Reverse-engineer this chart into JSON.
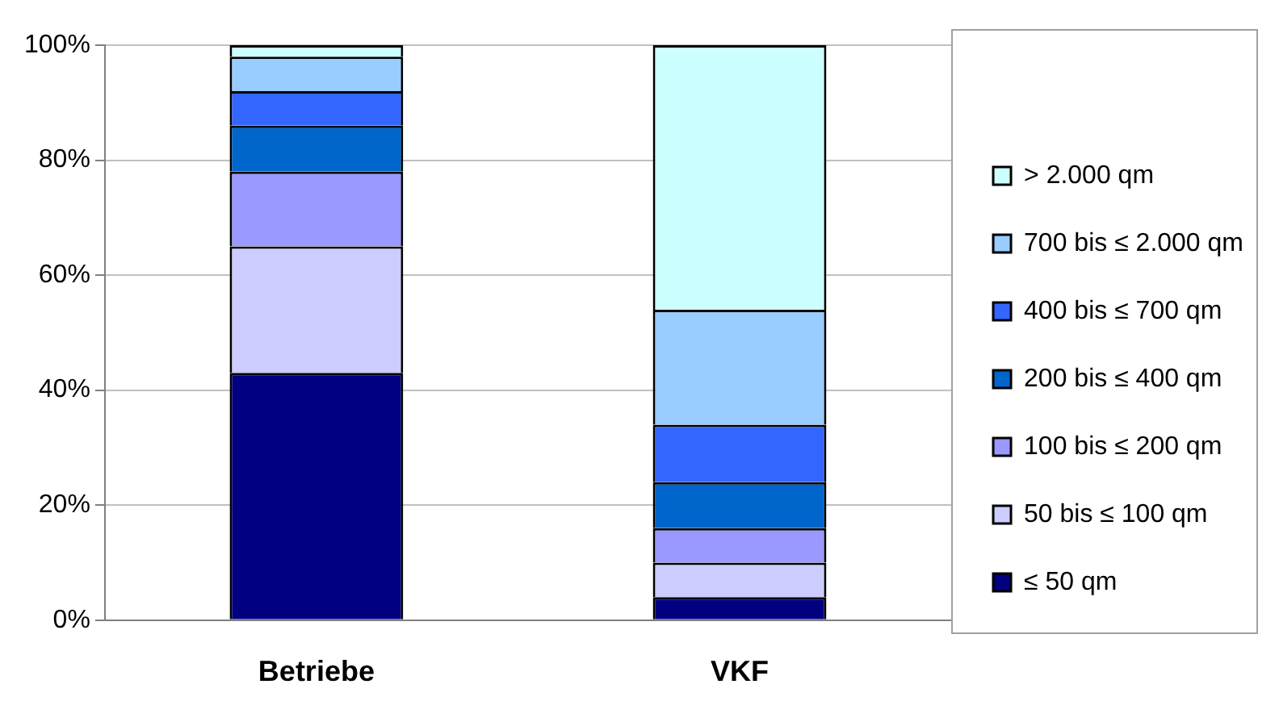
{
  "chart_data": {
    "type": "bar",
    "stacked": true,
    "categories": [
      "Betriebe",
      "VKF"
    ],
    "series": [
      {
        "name": "≤ 50 qm",
        "color": "#000080",
        "values": [
          43,
          4
        ]
      },
      {
        "name": "50 bis ≤ 100 qm",
        "color": "#ccccff",
        "values": [
          22,
          6
        ]
      },
      {
        "name": "100 bis ≤ 200 qm",
        "color": "#9999ff",
        "values": [
          13,
          6
        ]
      },
      {
        "name": "200 bis ≤ 400 qm",
        "color": "#0066cc",
        "values": [
          8,
          8
        ]
      },
      {
        "name": "400 bis ≤ 700 qm",
        "color": "#3366ff",
        "values": [
          6,
          10
        ]
      },
      {
        "name": "700 bis ≤ 2.000 qm",
        "color": "#99ccff",
        "values": [
          6,
          20
        ]
      },
      {
        "name": "> 2.000 qm",
        "color": "#ccffff",
        "values": [
          2,
          46
        ]
      }
    ],
    "ylim": [
      0,
      100
    ],
    "yticks": [
      {
        "value": 0,
        "label": "0%"
      },
      {
        "value": 20,
        "label": "20%"
      },
      {
        "value": 40,
        "label": "40%"
      },
      {
        "value": 60,
        "label": "60%"
      },
      {
        "value": 80,
        "label": "80%"
      },
      {
        "value": 100,
        "label": "100%"
      }
    ],
    "grid": "y",
    "legend": "right"
  }
}
